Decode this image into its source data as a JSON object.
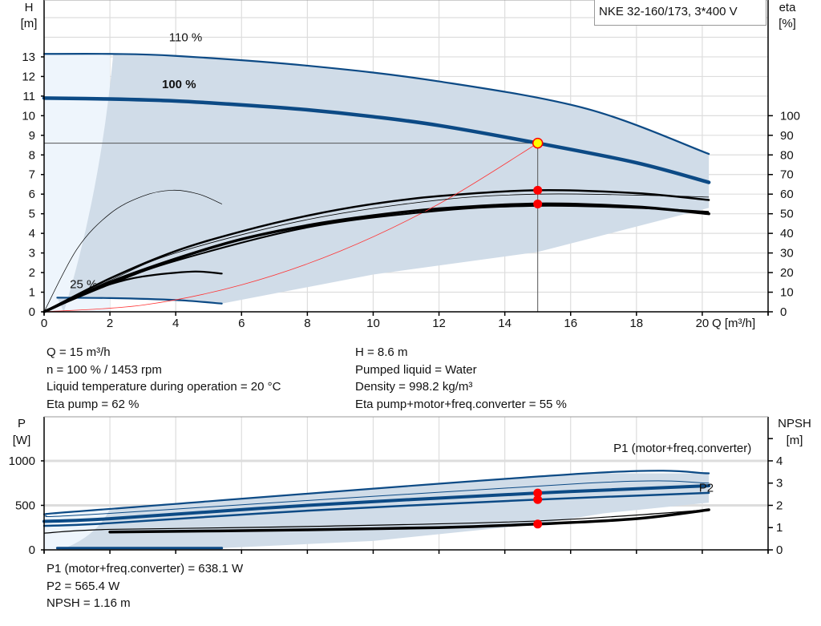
{
  "title": "NKE 32-160/173, 3*400 V",
  "chart_data": [
    {
      "type": "line",
      "name": "head-efficiency",
      "ylabel_left": [
        "H",
        "[m]"
      ],
      "ylabel_right": [
        "eta",
        "[%]"
      ],
      "xlabel": "Q [m³/h]",
      "xlim": [
        0,
        22
      ],
      "ylim_left": [
        0,
        15.9
      ],
      "ylim_right": [
        0,
        159
      ],
      "xticks": [
        "0",
        "2",
        "4",
        "6",
        "8",
        "10",
        "12",
        "14",
        "16",
        "18",
        "20"
      ],
      "yticks_left": [
        "0",
        "1",
        "2",
        "3",
        "4",
        "5",
        "6",
        "7",
        "8",
        "9",
        "10",
        "11",
        "12",
        "13"
      ],
      "yticks_right": [
        "0",
        "10",
        "20",
        "30",
        "40",
        "50",
        "60",
        "70",
        "80",
        "90",
        "100"
      ],
      "grid": true,
      "curve_labels": [
        {
          "text": "110 %",
          "x": 4.3,
          "y": 13.8
        },
        {
          "text": "100 %",
          "x": 4.1,
          "y": 11.4
        },
        {
          "text": "25 %",
          "x": 1.2,
          "y": 1.2
        }
      ],
      "series": [
        {
          "role": "head-110",
          "axis": "left",
          "x": [
            0,
            2,
            4,
            8,
            12,
            16.5,
            20.2
          ],
          "y": [
            13.15,
            13.15,
            13.05,
            12.55,
            11.75,
            10.35,
            8.05
          ]
        },
        {
          "role": "head-100",
          "axis": "left",
          "x": [
            0,
            2,
            4,
            6,
            8,
            10,
            12,
            15,
            18,
            20.2
          ],
          "y": [
            10.9,
            10.85,
            10.75,
            10.55,
            10.3,
            9.95,
            9.5,
            8.6,
            7.6,
            6.6
          ]
        },
        {
          "role": "head-25",
          "axis": "left",
          "x": [
            0.4,
            2,
            4,
            5.4
          ],
          "y": [
            0.72,
            0.7,
            0.6,
            0.42
          ]
        },
        {
          "role": "eta-pump",
          "axis": "right",
          "x": [
            0,
            2,
            4,
            6,
            8,
            10,
            12,
            15,
            18,
            20.2
          ],
          "y": [
            0,
            17,
            31,
            41,
            49,
            55,
            59,
            62,
            60.5,
            57
          ]
        },
        {
          "role": "eta-total",
          "axis": "right",
          "x": [
            0,
            2,
            4,
            6,
            8,
            10,
            12,
            15,
            18,
            20.2
          ],
          "y": [
            0,
            15,
            27,
            37,
            44,
            49,
            52.5,
            55,
            53.5,
            50
          ]
        },
        {
          "role": "eta-low-speed-pump",
          "axis": "right",
          "x": [
            0,
            1,
            2,
            3,
            3.9,
            4.7,
            5.4
          ],
          "y": [
            0,
            32,
            50,
            59,
            62,
            60,
            55
          ]
        },
        {
          "role": "eta-low-speed-total",
          "axis": "right",
          "x": [
            0,
            1,
            2,
            3,
            4.5,
            5.4
          ],
          "y": [
            0,
            8,
            14,
            18,
            20.5,
            19.5
          ]
        },
        {
          "role": "system-curve",
          "axis": "left",
          "x": [
            0,
            3,
            6,
            9,
            12,
            15
          ],
          "y": [
            0,
            0.344,
            1.376,
            3.096,
            5.504,
            8.6
          ]
        }
      ],
      "operating_point": {
        "Q": 15,
        "H": 8.6,
        "eta_pump": 62,
        "eta_total": 55
      }
    },
    {
      "type": "line",
      "name": "power-npsh",
      "ylabel_left": [
        "P",
        "[W]"
      ],
      "ylabel_right": [
        "NPSH",
        "[m]"
      ],
      "xlim": [
        0,
        22
      ],
      "ylim_left": [
        0,
        1495
      ],
      "ylim_right": [
        0,
        5.98
      ],
      "yticks_left": [
        "0",
        "500",
        "1000"
      ],
      "yticks_right": [
        "0",
        "1",
        "2",
        "3",
        "4"
      ],
      "grid": true,
      "curve_labels": [
        {
          "text": "P1 (motor+freq.converter)",
          "x": 17.3,
          "y": 1100
        },
        {
          "text": "P2",
          "x": 19.9,
          "y": 655
        }
      ],
      "series": [
        {
          "role": "p1-110",
          "axis": "left",
          "unit": "W",
          "x": [
            0,
            2,
            16.5,
            20.2
          ],
          "y": [
            400,
            460,
            860,
            860
          ]
        },
        {
          "role": "p1-100-thin",
          "axis": "left",
          "unit": "W",
          "x": [
            0,
            2,
            16.5,
            20.2
          ],
          "y": [
            380,
            410,
            750,
            750
          ]
        },
        {
          "role": "p1-100",
          "axis": "left",
          "unit": "W",
          "x": [
            0,
            2,
            8,
            15,
            20.2
          ],
          "y": [
            320,
            350,
            500,
            638,
            720
          ]
        },
        {
          "role": "p2-100",
          "axis": "left",
          "unit": "W",
          "x": [
            0,
            2,
            8,
            15,
            20.2
          ],
          "y": [
            270,
            300,
            440,
            565,
            640
          ]
        },
        {
          "role": "npsh-thin",
          "axis": "right",
          "unit": "m",
          "x": [
            0,
            2,
            8,
            15,
            20.2
          ],
          "y": [
            0.75,
            0.92,
            1.05,
            1.3,
            1.8
          ]
        },
        {
          "role": "npsh",
          "axis": "right",
          "unit": "m",
          "x": [
            2,
            8,
            12,
            15,
            18,
            20.2
          ],
          "y": [
            0.8,
            0.9,
            1.0,
            1.16,
            1.4,
            1.8
          ]
        },
        {
          "role": "p-25",
          "axis": "left",
          "unit": "W",
          "x": [
            0.4,
            5.4
          ],
          "y": [
            20,
            20
          ]
        }
      ],
      "operating_point": {
        "P1": 638.1,
        "P2": 565.4,
        "NPSH": 1.16
      }
    }
  ],
  "info_top": {
    "left": [
      "Q = 15 m³/h",
      "n = 100 % / 1453 rpm",
      "Liquid temperature during operation = 20 °C",
      "Eta pump = 62 %"
    ],
    "right": [
      "H = 8.6 m",
      "Pumped liquid = Water",
      "Density = 998.2 kg/m³",
      "Eta pump+motor+freq.converter = 55 %"
    ]
  },
  "info_bottom": [
    "P1 (motor+freq.converter) = 638.1 W",
    "P2 = 565.4 W",
    "NPSH = 1.16 m"
  ],
  "colors": {
    "curve_blue": "#0c4a85",
    "area": "#d0dce8",
    "area_light": "#eef5fc",
    "point": "#ff0000",
    "op_point": "#ffff00",
    "system_curve": "#ff3333",
    "grid": "#dddddd"
  }
}
